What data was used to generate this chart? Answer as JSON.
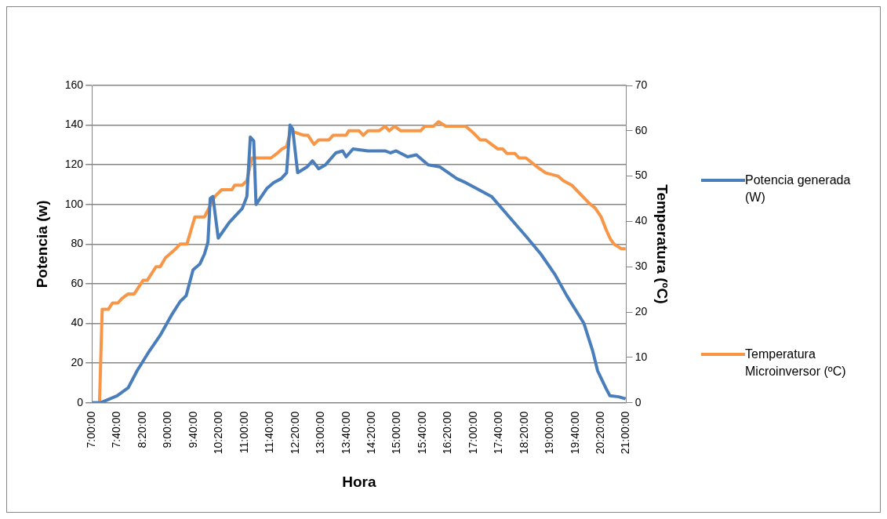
{
  "chart_data": {
    "type": "line",
    "xlabel": "Hora",
    "ylabel": "Potencia (w)",
    "y2label": "Temperatura (ºC)",
    "xlim": [
      7,
      21
    ],
    "xticks": [
      {
        "value": 7,
        "label": "7:00:00"
      },
      {
        "value": 7.6667,
        "label": "7:40:00"
      },
      {
        "value": 8.3333,
        "label": "8:20:00"
      },
      {
        "value": 9,
        "label": "9:00:00"
      },
      {
        "value": 9.6667,
        "label": "9:40:00"
      },
      {
        "value": 10.3333,
        "label": "10:20:00"
      },
      {
        "value": 11,
        "label": "11:00:00"
      },
      {
        "value": 11.6667,
        "label": "11:40:00"
      },
      {
        "value": 12.3333,
        "label": "12:20:00"
      },
      {
        "value": 13,
        "label": "13:00:00"
      },
      {
        "value": 13.6667,
        "label": "13:40:00"
      },
      {
        "value": 14.3333,
        "label": "14:20:00"
      },
      {
        "value": 15,
        "label": "15:00:00"
      },
      {
        "value": 15.6667,
        "label": "15:40:00"
      },
      {
        "value": 16.3333,
        "label": "16:20:00"
      },
      {
        "value": 17,
        "label": "17:00:00"
      },
      {
        "value": 17.6667,
        "label": "17:40:00"
      },
      {
        "value": 18.3333,
        "label": "18:20:00"
      },
      {
        "value": 19,
        "label": "19:00:00"
      },
      {
        "value": 19.6667,
        "label": "19:40:00"
      },
      {
        "value": 20.3333,
        "label": "20:20:00"
      },
      {
        "value": 21,
        "label": "21:00:00"
      }
    ],
    "ylim": [
      0,
      160
    ],
    "yticks": [
      0,
      20,
      40,
      60,
      80,
      100,
      120,
      140,
      160
    ],
    "y2lim": [
      0,
      70
    ],
    "y2ticks": [
      0,
      10,
      20,
      30,
      40,
      50,
      60,
      70
    ],
    "grid": "y",
    "legend": "right",
    "marker": "none",
    "line_style": "solid",
    "series": [
      {
        "name": "Potencia generada (W)",
        "color": "#4a7ebb",
        "type": "line",
        "axis": "y",
        "x": [
          7,
          7.23,
          7.66,
          7.95,
          8.18,
          8.47,
          8.79,
          9.08,
          9.31,
          9.47,
          9.65,
          9.83,
          9.95,
          10.04,
          10.1,
          10.17,
          10.31,
          10.6,
          10.94,
          11.06,
          11.15,
          11.24,
          11.3,
          11.58,
          11.76,
          11.96,
          12.1,
          12.19,
          12.26,
          12.39,
          12.64,
          12.78,
          12.94,
          13.12,
          13.39,
          13.57,
          13.66,
          13.84,
          14.23,
          14.68,
          14.82,
          14.97,
          15.27,
          15.5,
          15.81,
          16.11,
          16.56,
          16.79,
          17.08,
          17.47,
          17.92,
          18.37,
          18.76,
          19.12,
          19.44,
          19.89,
          20.12,
          20.25,
          20.46,
          20.57,
          20.8,
          20.98
        ],
        "values": [
          0,
          0,
          3.5,
          7.5,
          16,
          25,
          34,
          44,
          51,
          54,
          67,
          70,
          75,
          81,
          103,
          104,
          83,
          91,
          98,
          104,
          134,
          132,
          100,
          108,
          111,
          113,
          116,
          140,
          138,
          116,
          119,
          122,
          118,
          120,
          126,
          127,
          124,
          128,
          127,
          127,
          126,
          127,
          124,
          125,
          120,
          119,
          113,
          111,
          108,
          104,
          94,
          84,
          75,
          65,
          54,
          40,
          26,
          16,
          7.5,
          3.5,
          3,
          2
        ]
      },
      {
        "name": "Temperatura Microinversor (ºC)",
        "color": "#f79646",
        "type": "line",
        "axis": "y2",
        "x": [
          7,
          7.2,
          7.27,
          7.43,
          7.54,
          7.68,
          7.79,
          7.95,
          8.11,
          8.34,
          8.45,
          8.68,
          8.79,
          8.93,
          9.2,
          9.31,
          9.49,
          9.7,
          9.95,
          10.22,
          10.4,
          10.67,
          10.74,
          10.94,
          11.06,
          11.19,
          11.69,
          11.85,
          11.98,
          12.1,
          12.21,
          12.55,
          12.66,
          12.82,
          12.94,
          13.21,
          13.32,
          13.66,
          13.73,
          14,
          14.11,
          14.23,
          14.52,
          14.68,
          14.79,
          14.93,
          15.09,
          15.61,
          15.72,
          15.95,
          16.08,
          16.27,
          16.79,
          17.01,
          17.17,
          17.31,
          17.47,
          17.63,
          17.76,
          17.87,
          18.08,
          18.19,
          18.37,
          18.67,
          18.89,
          19.21,
          19.35,
          19.57,
          19.8,
          20.03,
          20.18,
          20.34,
          20.48,
          20.59,
          20.68,
          20.86,
          20.98
        ],
        "values": [
          0,
          0,
          20.6,
          20.6,
          22,
          22,
          23,
          24,
          24,
          27,
          27,
          30,
          30,
          32,
          34,
          35,
          35,
          41,
          41,
          45.5,
          47,
          47,
          48,
          48,
          49,
          54,
          54,
          55,
          56,
          56.5,
          60,
          59,
          59,
          57,
          58,
          58,
          59,
          59,
          60,
          60,
          59,
          60,
          60,
          61,
          60,
          61,
          60,
          60,
          61,
          61,
          62,
          61,
          61,
          59.4,
          58,
          58,
          57,
          56,
          56,
          55,
          55,
          54,
          54,
          52,
          50.7,
          50,
          49,
          48,
          46,
          44,
          43,
          41,
          38,
          36,
          35,
          34,
          34
        ]
      }
    ]
  }
}
